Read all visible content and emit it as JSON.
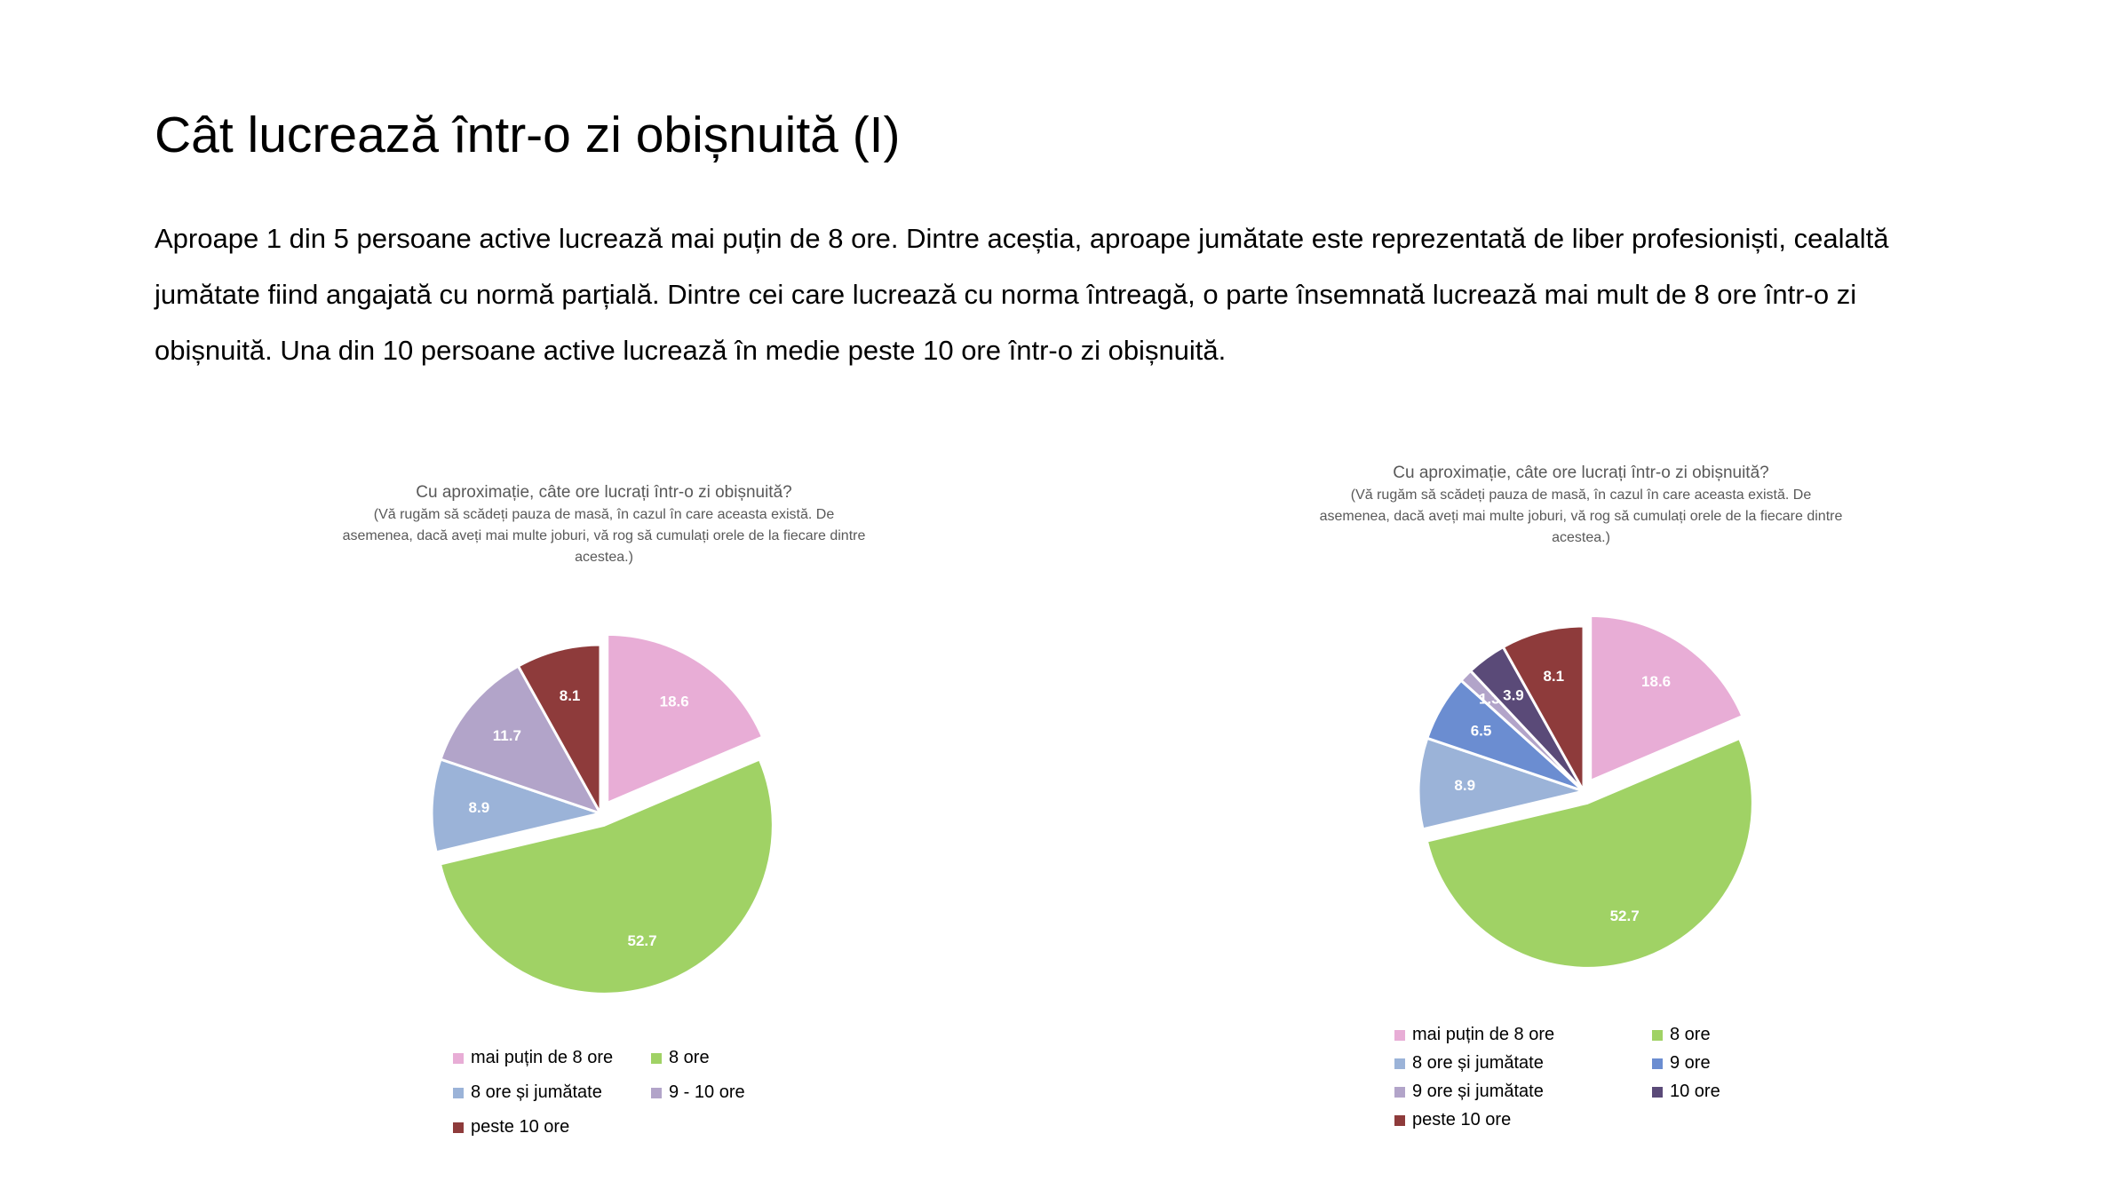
{
  "slide": {
    "title": "Cât lucrează într-o zi obișnuită (I)",
    "body": "Aproape 1 din 5 persoane active lucrează mai puțin de 8 ore. Dintre aceștia, aproape jumătate este reprezentată de liber profesioniști, cealaltă jumătate fiind angajată cu normă parțială. Dintre cei care lucrează cu norma întreagă, o parte însemnată lucrează mai mult de 8 ore într-o zi obișnuită. Una din 10 persoane active lucrează în medie peste 10 ore într-o zi obișnuită."
  },
  "chart_data": [
    {
      "type": "pie",
      "title": "Cu aproximație, câte ore lucrați într-o zi obișnuită?",
      "subtitle": "(Vă rugăm să scădeți pauza de masă, în cazul în care aceasta există. De asemenea, dacă aveți mai multe joburi, vă rog să cumulați orele de la fiecare dintre acestea.)",
      "categories": [
        "mai puțin de 8 ore",
        "8 ore",
        "8 ore și jumătate",
        "9 - 10 ore",
        "peste 10 ore"
      ],
      "values": [
        18.6,
        52.7,
        8.9,
        11.7,
        8.1
      ],
      "colors": [
        "#E8ADD6",
        "#A0D265",
        "#9BB3D8",
        "#B2A4C9",
        "#8E3B3B"
      ],
      "exploded": [
        "mai puțin de 8 ore",
        "8 ore"
      ],
      "legend": "bottom"
    },
    {
      "type": "pie",
      "title": "Cu aproximație, câte ore lucrați într-o zi obișnuită?",
      "subtitle": "(Vă rugăm să scădeți pauza de masă, în cazul în care aceasta există. De asemenea, dacă aveți mai multe joburi, vă rog să cumulați orele de la fiecare dintre acestea.)",
      "categories": [
        "mai puțin de 8 ore",
        "8 ore",
        "8 ore și jumătate",
        "9 ore",
        "9 ore și jumătate",
        "10 ore",
        "peste 10 ore"
      ],
      "values": [
        18.6,
        52.7,
        8.9,
        6.5,
        1.3,
        3.9,
        8.1
      ],
      "colors": [
        "#E8ADD6",
        "#A0D265",
        "#9BB3D8",
        "#6B8DD1",
        "#B2A4C9",
        "#5A4A78",
        "#8E3B3B"
      ],
      "exploded": [
        "mai puțin de 8 ore",
        "8 ore"
      ],
      "legend": "bottom"
    }
  ]
}
